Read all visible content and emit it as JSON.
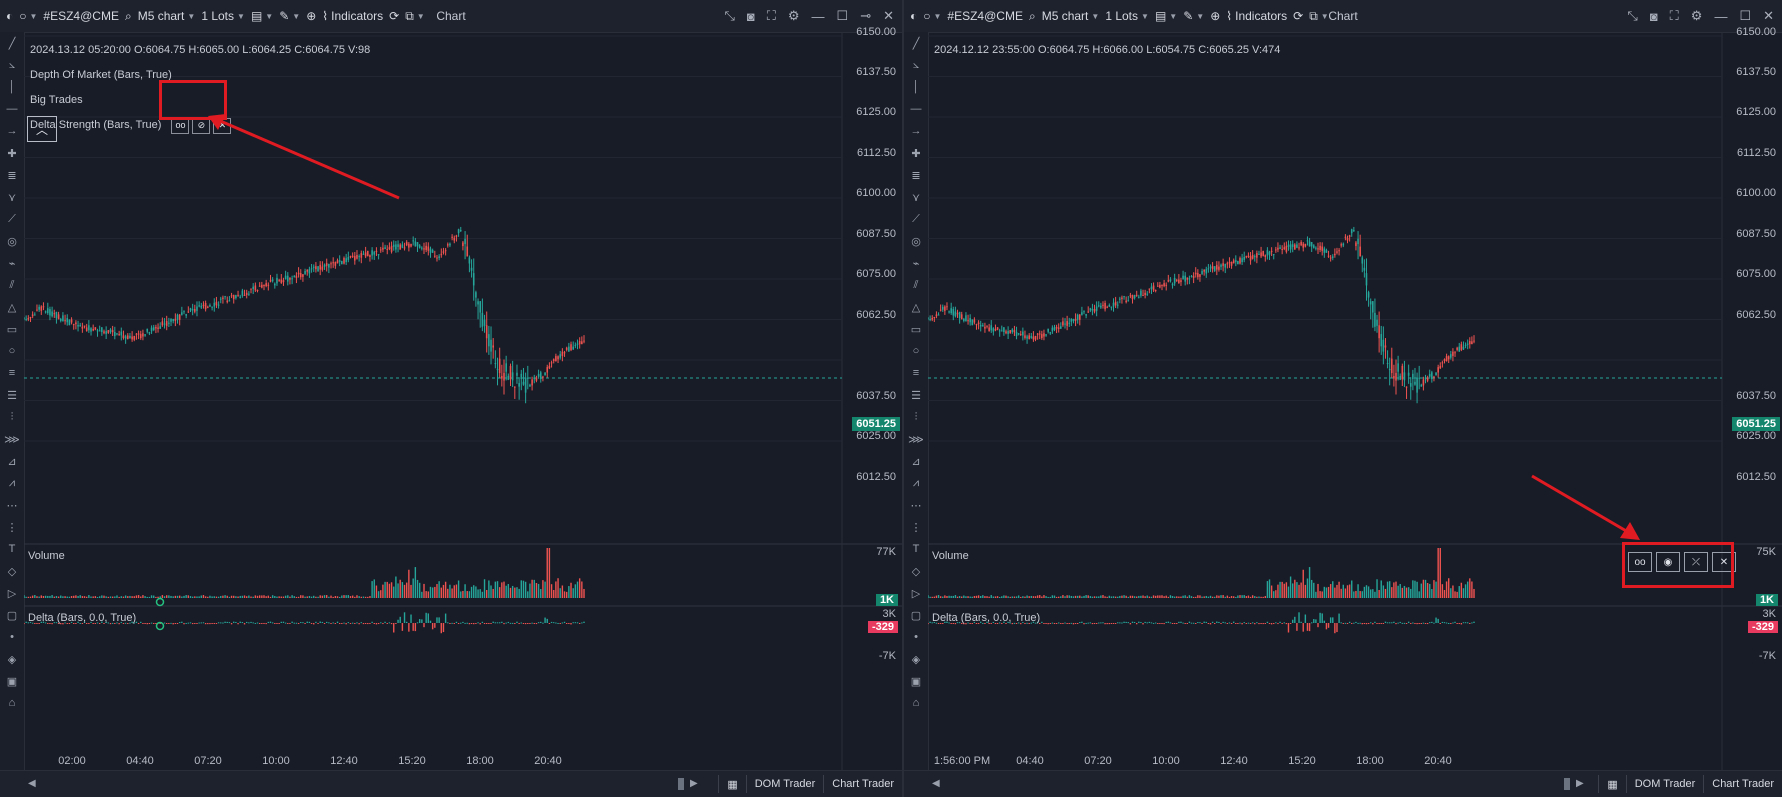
{
  "panels": [
    {
      "id": "left",
      "toolbar": {
        "symbol": "#ESZ4@CME",
        "timeframe": "M5 chart",
        "lots": "1 Lots",
        "indicators_label": "Indicators",
        "title": "Chart"
      },
      "ohlcv": "2024.13.12 05:20:00 O:6064.75 H:6065.00 L:6064.25 C:6064.75 V:98",
      "legend": [
        "Depth Of Market (Bars, True)",
        "Big Trades",
        "Delta Strength (Bars, True)"
      ],
      "legend_controls": [
        "settings",
        "hide",
        "close"
      ],
      "price_axis": [
        "6150.00",
        "6137.50",
        "6125.00",
        "6112.50",
        "6100.00",
        "6087.50",
        "6075.00",
        "6062.50",
        "6037.50",
        "6025.00",
        "6012.50"
      ],
      "current_price": "6051.25",
      "volume_title": "Volume",
      "volume_top": "77K",
      "volume_badge": "1K",
      "delta_title": "Delta (Bars, 0.0, True)",
      "delta_top": "3K",
      "delta_badge": "-329",
      "delta_bottom": "-7K",
      "time_axis": [
        "02:00",
        "04:40",
        "07:20",
        "10:00",
        "12:40",
        "15:20",
        "18:00",
        "20:40"
      ],
      "status": {
        "dom": "DOM Trader",
        "chart_trader": "Chart Trader"
      }
    },
    {
      "id": "right",
      "toolbar": {
        "symbol": "#ESZ4@CME",
        "timeframe": "M5 chart",
        "lots": "1 Lots",
        "indicators_label": "Indicators",
        "title": "Chart"
      },
      "ohlcv": "2024.12.12 23:55:00 O:6064.75 H:6066.00 L:6054.75 C:6065.25 V:474",
      "price_axis": [
        "6150.00",
        "6137.50",
        "6125.00",
        "6112.50",
        "6100.00",
        "6087.50",
        "6075.00",
        "6062.50",
        "6037.50",
        "6025.00",
        "6012.50"
      ],
      "current_price": "6051.25",
      "volume_title": "Volume",
      "volume_top": "75K",
      "volume_badge": "1K",
      "pane_controls": [
        "settings",
        "hide",
        "collapse",
        "close"
      ],
      "delta_title": "Delta (Bars, 0.0, True)",
      "delta_top": "3K",
      "delta_badge": "-329",
      "delta_bottom": "-7K",
      "time_axis": [
        "1:56:00 PM",
        "04:40",
        "07:20",
        "10:00",
        "12:40",
        "15:20",
        "18:00",
        "20:40"
      ],
      "status": {
        "dom": "DOM Trader",
        "chart_trader": "Chart Trader"
      }
    }
  ],
  "colors": {
    "bull": "#26a69a",
    "bear": "#ef5350",
    "annotation": "#e01b22",
    "background": "#181c27"
  }
}
